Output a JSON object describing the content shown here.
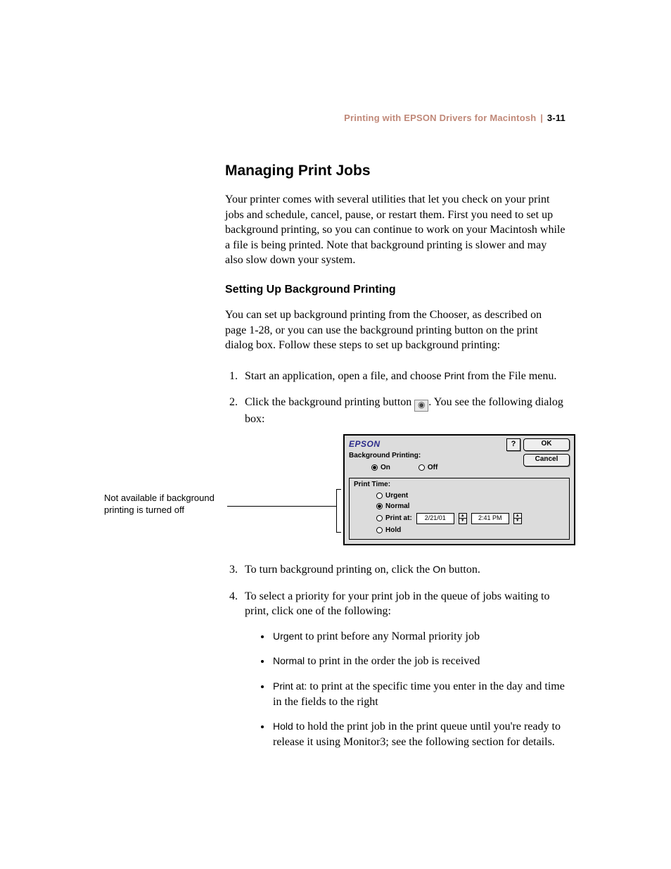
{
  "header": {
    "breadcrumb": "Printing with EPSON Drivers for Macintosh",
    "page_number": "3-11"
  },
  "section": {
    "title": "Managing Print Jobs",
    "intro": "Your printer comes with several utilities that let you check on your print jobs and schedule, cancel, pause, or restart them. First you need to set up background printing, so you can continue to work on your Macintosh while a file is being printed. Note that background printing is slower and may also slow down your system."
  },
  "subsection": {
    "title": "Setting Up Background Printing",
    "intro": "You can set up background printing from the Chooser, as described on page 1-28, or you can use the background printing button on the print dialog box. Follow these steps to set up background printing:"
  },
  "steps": {
    "s1_a": "Start an application, open a file, and choose ",
    "s1_print": "Print",
    "s1_b": " from the File menu.",
    "s2_a": "Click the background printing button ",
    "s2_b": ". You see the following dialog box:",
    "s3_a": "To turn background printing on, click the ",
    "s3_on": "On",
    "s3_b": " button.",
    "s4": "To select a priority for your print job in the queue of jobs waiting to print, click one of the following:"
  },
  "bullets": {
    "urgent_label": "Urgent",
    "urgent_text": " to print before any Normal priority job",
    "normal_label": "Normal",
    "normal_text": " to print in the order the job is received",
    "printat_label": "Print at:",
    "printat_text": " to print at the specific time you enter in the day and time in the fields to the right",
    "hold_label": "Hold",
    "hold_text": " to hold the print job in the print queue until you're ready to release it using Monitor3; see the following section for details."
  },
  "callout": {
    "text": "Not available if background printing is turned off"
  },
  "dialog": {
    "brand": "EPSON",
    "help": "?",
    "ok": "OK",
    "cancel": "Cancel",
    "bg_label": "Background Printing:",
    "on": "On",
    "off": "Off",
    "print_time": "Print Time:",
    "urgent": "Urgent",
    "normal": "Normal",
    "print_at": "Print at:",
    "hold": "Hold",
    "date": "2/21/01",
    "time": "2:41 PM"
  },
  "styling": {
    "page_bg": "#ffffff",
    "header_color": "#c08878",
    "dialog_bg": "#dcdcdc",
    "dialog_border": "#000000",
    "button_bg": "#eeeeee",
    "brand_color": "#2a2a8a",
    "body_font_size_pt": 12,
    "heading_font_family": "Helvetica",
    "body_font_family": "Garamond"
  }
}
